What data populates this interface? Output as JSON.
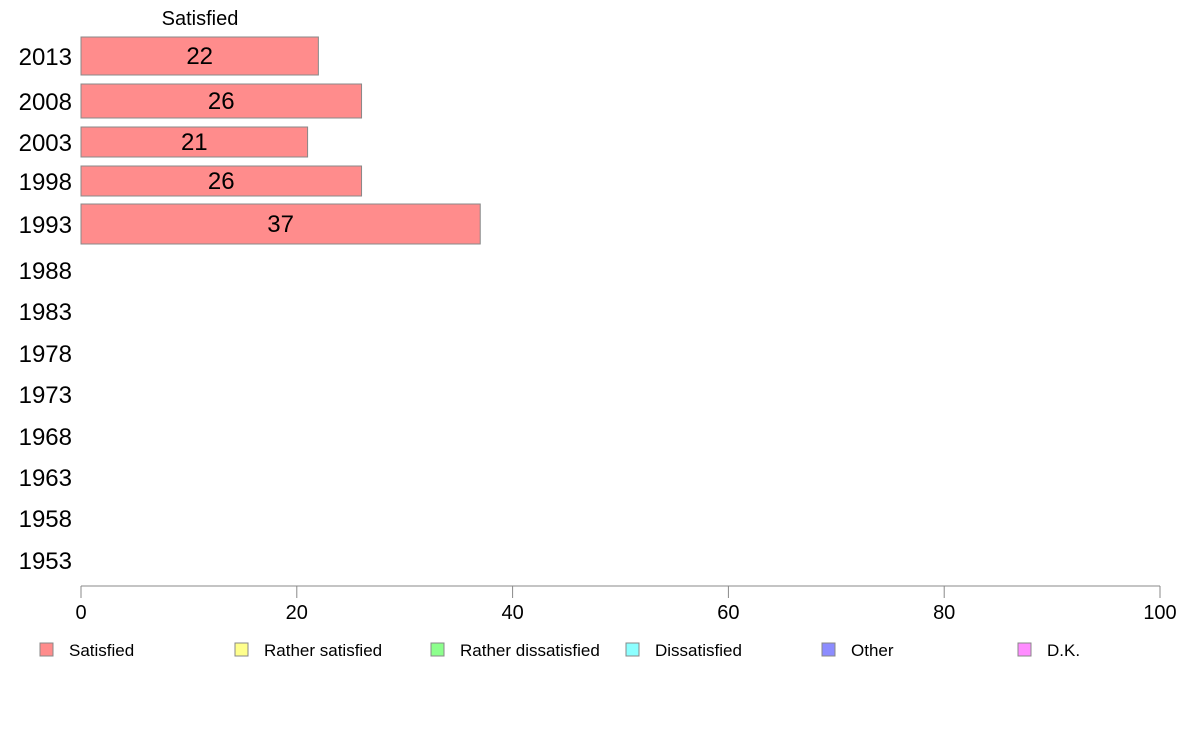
{
  "chart_data": {
    "type": "bar",
    "orientation": "horizontal",
    "stacked": true,
    "title": "",
    "xlabel": "",
    "ylabel": "",
    "xlim": [
      0,
      100
    ],
    "x_ticks": [
      0,
      20,
      40,
      60,
      80,
      100
    ],
    "grid": false,
    "legend_position": "bottom",
    "categories": [
      "2013",
      "2008",
      "2003",
      "1998",
      "1993",
      "1988",
      "1983",
      "1978",
      "1973",
      "1968",
      "1963",
      "1958",
      "1953"
    ],
    "series": [
      {
        "name": "Satisfied",
        "color": "#ff8c8c",
        "values": [
          22,
          26,
          21,
          26,
          37,
          null,
          null,
          null,
          null,
          null,
          null,
          null,
          null
        ]
      },
      {
        "name": "Rather satisfied",
        "color": "#ffff8c",
        "values": [
          null,
          null,
          null,
          null,
          null,
          null,
          null,
          null,
          null,
          null,
          null,
          null,
          null
        ]
      },
      {
        "name": "Rather dissatisfied",
        "color": "#8cff8c",
        "values": [
          null,
          null,
          null,
          null,
          null,
          null,
          null,
          null,
          null,
          null,
          null,
          null,
          null
        ]
      },
      {
        "name": "Dissatisfied",
        "color": "#8cffff",
        "values": [
          null,
          null,
          null,
          null,
          null,
          null,
          null,
          null,
          null,
          null,
          null,
          null,
          null
        ]
      },
      {
        "name": "Other",
        "color": "#8c8cff",
        "values": [
          null,
          null,
          null,
          null,
          null,
          null,
          null,
          null,
          null,
          null,
          null,
          null,
          null
        ]
      },
      {
        "name": "D.K.",
        "color": "#ff8cff",
        "values": [
          null,
          null,
          null,
          null,
          null,
          null,
          null,
          null,
          null,
          null,
          null,
          null,
          null
        ]
      }
    ],
    "column_header": "Satisfied"
  }
}
